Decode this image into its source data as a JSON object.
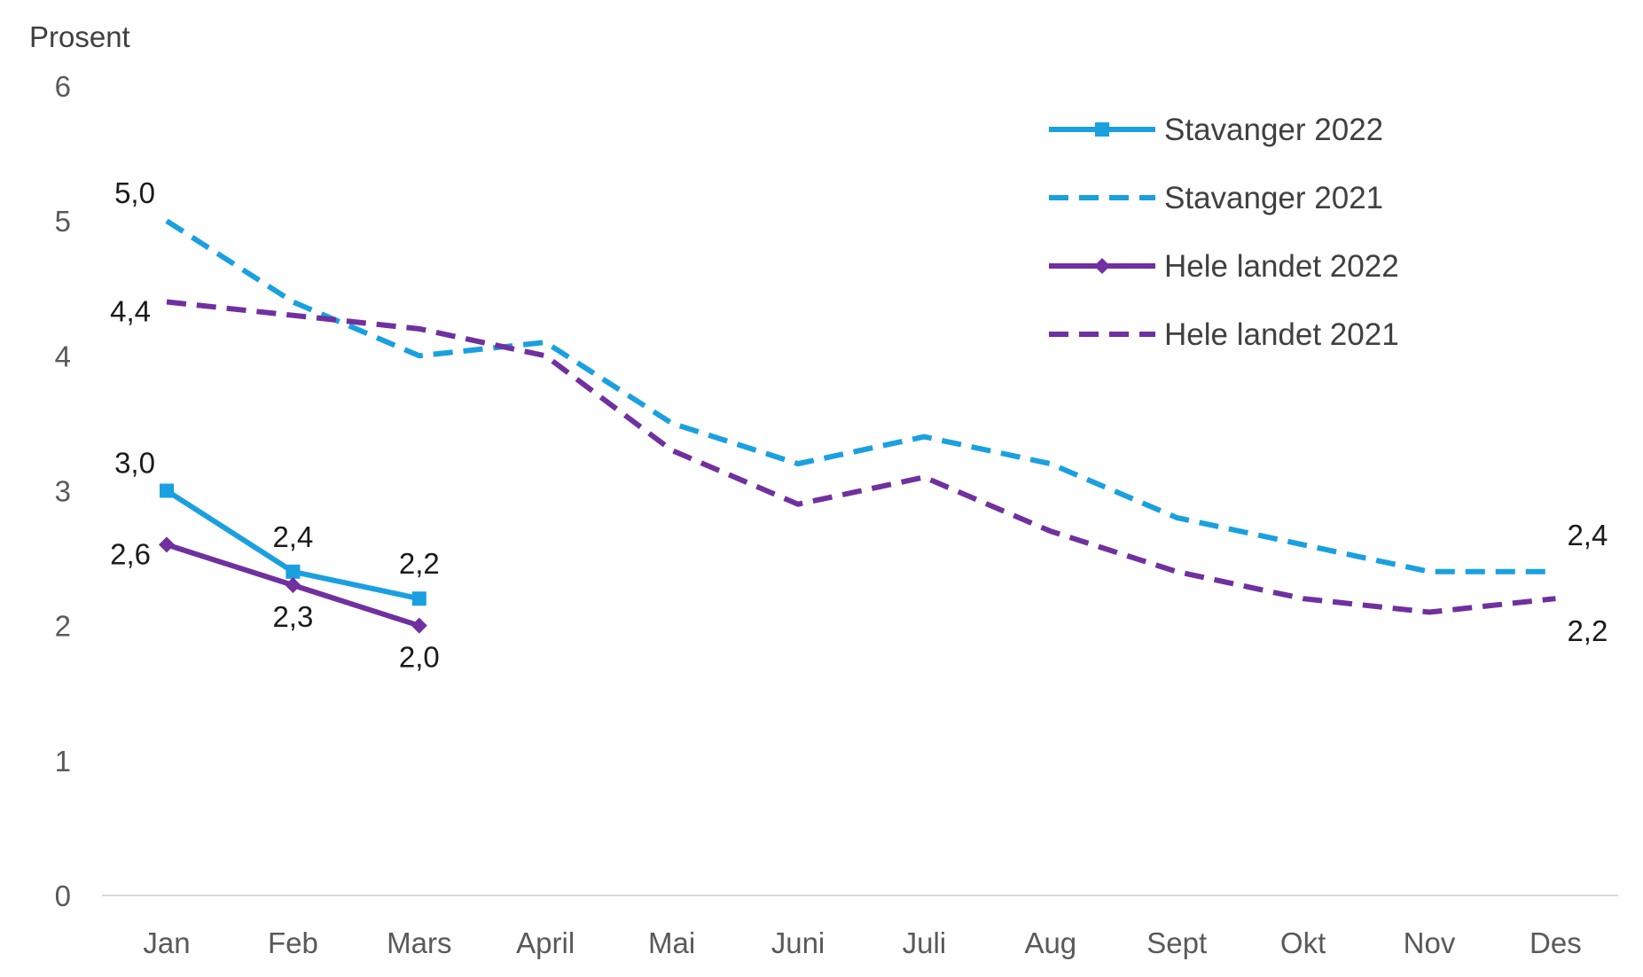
{
  "chart_data": {
    "type": "line",
    "title": "",
    "xlabel": "",
    "ylabel": "Prosent",
    "ylim": [
      0,
      6
    ],
    "yticks": [
      0,
      1,
      2,
      3,
      4,
      5,
      6
    ],
    "categories": [
      "Jan",
      "Feb",
      "Mars",
      "April",
      "Mai",
      "Juni",
      "Juli",
      "Aug",
      "Sept",
      "Okt",
      "Nov",
      "Des"
    ],
    "grid": false,
    "legend_position": "top-right",
    "series": [
      {
        "name": "Stavanger 2022",
        "color": "#1aa0e0",
        "style": "solid",
        "marker": "square",
        "values": [
          3.0,
          2.4,
          2.2,
          null,
          null,
          null,
          null,
          null,
          null,
          null,
          null,
          null
        ],
        "labels": [
          {
            "index": 0,
            "text": "3,0",
            "position": "above-left"
          },
          {
            "index": 1,
            "text": "2,4",
            "position": "above"
          },
          {
            "index": 2,
            "text": "2,2",
            "position": "above"
          }
        ]
      },
      {
        "name": "Stavanger 2021",
        "color": "#1aa0e0",
        "style": "dashed",
        "marker": "none",
        "values": [
          5.0,
          4.4,
          4.0,
          4.1,
          3.5,
          3.2,
          3.4,
          3.2,
          2.8,
          2.6,
          2.4,
          2.4
        ],
        "labels": [
          {
            "index": 0,
            "text": "5,0",
            "position": "above-left"
          },
          {
            "index": 11,
            "text": "2,4",
            "position": "above-right"
          }
        ]
      },
      {
        "name": "Hele landet 2022",
        "color": "#7030a0",
        "style": "solid",
        "marker": "diamond",
        "values": [
          2.6,
          2.3,
          2.0,
          null,
          null,
          null,
          null,
          null,
          null,
          null,
          null,
          null
        ],
        "labels": [
          {
            "index": 0,
            "text": "2,6",
            "position": "left"
          },
          {
            "index": 1,
            "text": "2,3",
            "position": "below"
          },
          {
            "index": 2,
            "text": "2,0",
            "position": "below"
          }
        ]
      },
      {
        "name": "Hele landet 2021",
        "color": "#7030a0",
        "style": "dashed",
        "marker": "none",
        "values": [
          4.4,
          4.3,
          4.2,
          4.0,
          3.3,
          2.9,
          3.1,
          2.7,
          2.4,
          2.2,
          2.1,
          2.2
        ],
        "labels": [
          {
            "index": 0,
            "text": "4,4",
            "position": "left"
          },
          {
            "index": 11,
            "text": "2,2",
            "position": "below-right"
          }
        ]
      }
    ]
  }
}
